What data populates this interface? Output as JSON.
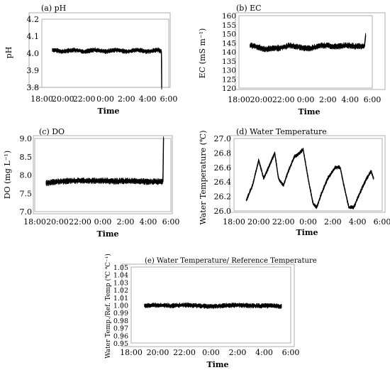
{
  "chart_data": [
    {
      "panel": "(a) pH",
      "type": "line",
      "title": "(a) pH",
      "xlabel": "Time",
      "ylabel": "pH",
      "x_ticks": [
        "18:00",
        "20:00",
        "22:00",
        "0:00",
        "2:00",
        "4:00",
        "6:00"
      ],
      "y_ticks": [
        "3.8",
        "3.9",
        "4.0",
        "4.1",
        "4.2"
      ],
      "xlim": [
        18,
        30
      ],
      "ylim": [
        3.8,
        4.2
      ],
      "series": [
        {
          "x": [
            19.0,
            20.0,
            21.0,
            22.0,
            23.0,
            24.0,
            25.0,
            26.0,
            27.0,
            28.0,
            29.0,
            29.3,
            29.32,
            29.33
          ],
          "values": [
            4.02,
            4.01,
            4.02,
            4.01,
            4.02,
            4.01,
            4.02,
            4.01,
            4.02,
            4.01,
            4.02,
            4.01,
            3.95,
            3.8
          ],
          "band": 0.015
        }
      ],
      "grid": false
    },
    {
      "panel": "(b) EC",
      "type": "line",
      "title": "(b) EC",
      "xlabel": "Time",
      "ylabel": "EC (mS m⁻¹)",
      "x_ticks": [
        "18:00",
        "20:00",
        "22:00",
        "0:00",
        "2:00",
        "4:00",
        "6:00"
      ],
      "y_ticks": [
        "120",
        "125",
        "130",
        "135",
        "140",
        "145",
        "150",
        "155",
        "160"
      ],
      "xlim": [
        18,
        30
      ],
      "ylim": [
        120,
        160
      ],
      "series": [
        {
          "x": [
            19.0,
            19.5,
            20.0,
            20.5,
            21.0,
            21.5,
            22.0,
            22.5,
            23.0,
            23.5,
            24.0,
            24.5,
            25.0,
            25.5,
            26.0,
            26.5,
            27.0,
            27.5,
            28.0,
            28.5,
            29.0,
            29.3,
            29.4
          ],
          "values": [
            143.5,
            143.0,
            142.0,
            141.5,
            142.0,
            142.0,
            142.5,
            143.5,
            143.0,
            142.5,
            142.0,
            142.0,
            143.0,
            143.5,
            143.5,
            143.0,
            143.0,
            143.5,
            143.5,
            143.0,
            143.0,
            143.0,
            149.0
          ],
          "band": 1.8
        }
      ],
      "grid": false
    },
    {
      "panel": "(c) DO",
      "type": "line",
      "title": "(c) DO",
      "xlabel": "Time",
      "ylabel": "DO (mg L⁻¹)",
      "x_ticks": [
        "18:00",
        "20:00",
        "22:00",
        "0:00",
        "2:00",
        "4:00",
        "6:00"
      ],
      "y_ticks": [
        "7.0",
        "7.5",
        "8.0",
        "8.5",
        "9.0"
      ],
      "xlim": [
        18,
        30
      ],
      "ylim": [
        7.0,
        9.0
      ],
      "series": [
        {
          "x": [
            19.0,
            20.0,
            21.0,
            22.0,
            23.0,
            24.0,
            25.0,
            26.0,
            27.0,
            28.0,
            29.0,
            29.3,
            29.35
          ],
          "values": [
            7.78,
            7.82,
            7.84,
            7.85,
            7.84,
            7.85,
            7.83,
            7.84,
            7.83,
            7.82,
            7.82,
            7.82,
            9.0
          ],
          "band": 0.09
        }
      ],
      "grid": false
    },
    {
      "panel": "(d) Water Temperature",
      "type": "line",
      "title": "(d) Water Temperature",
      "xlabel": "Time",
      "ylabel": "Water Temperature (℃)",
      "x_ticks": [
        "18:00",
        "20:00",
        "22:00",
        "0:00",
        "2:00",
        "4:00",
        "6:00"
      ],
      "y_ticks": [
        "26.0",
        "26.2",
        "26.4",
        "26.6",
        "26.8",
        "27.0"
      ],
      "xlim": [
        18,
        30
      ],
      "ylim": [
        26.0,
        27.0
      ],
      "series": [
        {
          "x": [
            19.0,
            19.5,
            20.0,
            20.4,
            20.8,
            21.3,
            21.6,
            22.0,
            22.4,
            22.9,
            23.3,
            23.6,
            24.0,
            24.4,
            24.7,
            25.1,
            25.6,
            26.2,
            26.6,
            26.9,
            27.3,
            27.7,
            28.2,
            28.6,
            29.1,
            29.3
          ],
          "values": [
            26.15,
            26.35,
            26.7,
            26.45,
            26.6,
            26.8,
            26.45,
            26.35,
            26.55,
            26.75,
            26.8,
            26.85,
            26.45,
            26.1,
            26.05,
            26.25,
            26.45,
            26.6,
            26.6,
            26.35,
            26.05,
            26.05,
            26.25,
            26.4,
            26.55,
            26.45
          ],
          "band": 0.03
        }
      ],
      "grid": false
    },
    {
      "panel": "(e) Water Temperature/ Reference Temperature",
      "type": "line",
      "title": "(e) Water Temperature/ Reference Temperature",
      "xlabel": "Time",
      "ylabel": "Water Temp./Ref. Temp (℃ ℃⁻¹)",
      "x_ticks": [
        "18:00",
        "20:00",
        "22:00",
        "0:00",
        "2:00",
        "4:00",
        "6:00"
      ],
      "y_ticks": [
        "0.95",
        "0.96",
        "0.97",
        "0.98",
        "0.99",
        "1.00",
        "1.01",
        "1.02",
        "1.03",
        "1.04",
        "1.05"
      ],
      "xlim": [
        18,
        30
      ],
      "ylim": [
        0.95,
        1.05
      ],
      "series": [
        {
          "x": [
            19.0,
            20.0,
            21.0,
            22.0,
            23.0,
            24.0,
            25.0,
            26.0,
            27.0,
            28.0,
            29.0,
            29.3
          ],
          "values": [
            0.999,
            1.0,
            0.999,
            1.0,
            0.999,
            0.998,
            0.999,
            1.0,
            0.999,
            0.999,
            0.999,
            0.998
          ],
          "band": 0.0035
        }
      ],
      "grid": false
    }
  ]
}
